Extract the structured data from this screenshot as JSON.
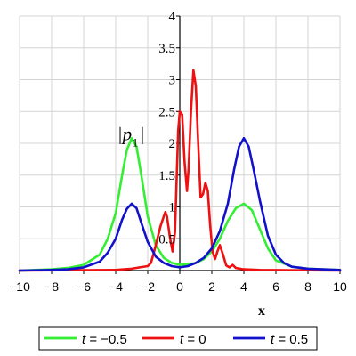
{
  "chart_data": {
    "type": "line",
    "title": "",
    "xlabel": "x",
    "ylabel": "",
    "xlim": [
      -10,
      10
    ],
    "ylim": [
      0,
      4
    ],
    "x_ticks": [
      "−10",
      "−8",
      "−6",
      "−4",
      "−2",
      "0",
      "2",
      "4",
      "6",
      "8",
      "10"
    ],
    "x_tick_values": [
      -10,
      -8,
      -6,
      -4,
      -2,
      0,
      2,
      4,
      6,
      8,
      10
    ],
    "y_ticks": [
      "0.5",
      "1",
      "1.5",
      "2",
      "2.5",
      "3",
      "3.5",
      "4"
    ],
    "y_tick_values": [
      0.5,
      1,
      1.5,
      2,
      2.5,
      3,
      3.5,
      4
    ],
    "grid": true,
    "legend_position": "bottom",
    "annotation": {
      "main": "|p",
      "sub": "1",
      "close": "|",
      "x": -3.9,
      "y": 2.05
    },
    "series": [
      {
        "name": "t = −0.5",
        "color": "#33ee33",
        "points": [
          [
            -10,
            0
          ],
          [
            -8,
            0.02
          ],
          [
            -7,
            0.04
          ],
          [
            -6,
            0.09
          ],
          [
            -5,
            0.25
          ],
          [
            -4.5,
            0.5
          ],
          [
            -4,
            0.9
          ],
          [
            -3.6,
            1.5
          ],
          [
            -3.3,
            1.9
          ],
          [
            -3,
            2.08
          ],
          [
            -2.7,
            1.95
          ],
          [
            -2.4,
            1.5
          ],
          [
            -2,
            0.85
          ],
          [
            -1.5,
            0.4
          ],
          [
            -1,
            0.2
          ],
          [
            -0.5,
            0.12
          ],
          [
            0,
            0.09
          ],
          [
            0.5,
            0.1
          ],
          [
            1,
            0.12
          ],
          [
            1.5,
            0.18
          ],
          [
            2,
            0.3
          ],
          [
            2.5,
            0.5
          ],
          [
            3,
            0.78
          ],
          [
            3.5,
            0.98
          ],
          [
            4,
            1.05
          ],
          [
            4.5,
            0.95
          ],
          [
            5,
            0.65
          ],
          [
            5.5,
            0.35
          ],
          [
            6,
            0.16
          ],
          [
            7,
            0.06
          ],
          [
            8,
            0.03
          ],
          [
            10,
            0.01
          ]
        ]
      },
      {
        "name": "t = 0",
        "color": "#ee1111",
        "points": [
          [
            -10,
            0
          ],
          [
            -4,
            0.01
          ],
          [
            -3.5,
            0.02
          ],
          [
            -3,
            0.03
          ],
          [
            -2.5,
            0.05
          ],
          [
            -2,
            0.07
          ],
          [
            -1.8,
            0.12
          ],
          [
            -1.6,
            0.3
          ],
          [
            -1.4,
            0.5
          ],
          [
            -1.2,
            0.7
          ],
          [
            -1,
            0.85
          ],
          [
            -0.9,
            0.92
          ],
          [
            -0.8,
            0.85
          ],
          [
            -0.6,
            0.5
          ],
          [
            -0.45,
            0.3
          ],
          [
            -0.3,
            0.6
          ],
          [
            -0.2,
            1.4
          ],
          [
            -0.1,
            2.2
          ],
          [
            0,
            2.5
          ],
          [
            0.15,
            2.45
          ],
          [
            0.3,
            1.7
          ],
          [
            0.45,
            1.25
          ],
          [
            0.55,
            1.6
          ],
          [
            0.7,
            2.5
          ],
          [
            0.85,
            3.15
          ],
          [
            1,
            2.9
          ],
          [
            1.15,
            2
          ],
          [
            1.3,
            1.15
          ],
          [
            1.45,
            1.2
          ],
          [
            1.6,
            1.38
          ],
          [
            1.75,
            1.25
          ],
          [
            1.9,
            0.7
          ],
          [
            2.05,
            0.3
          ],
          [
            2.2,
            0.18
          ],
          [
            2.35,
            0.3
          ],
          [
            2.5,
            0.4
          ],
          [
            2.7,
            0.25
          ],
          [
            2.9,
            0.08
          ],
          [
            3.1,
            0.05
          ],
          [
            3.3,
            0.09
          ],
          [
            3.5,
            0.04
          ],
          [
            4,
            0.02
          ],
          [
            5,
            0.01
          ],
          [
            10,
            0
          ]
        ]
      },
      {
        "name": "t = 0.5",
        "color": "#1111cc",
        "points": [
          [
            -10,
            0
          ],
          [
            -8,
            0.01
          ],
          [
            -7,
            0.02
          ],
          [
            -6,
            0.05
          ],
          [
            -5,
            0.14
          ],
          [
            -4.5,
            0.28
          ],
          [
            -4,
            0.5
          ],
          [
            -3.6,
            0.8
          ],
          [
            -3.3,
            0.97
          ],
          [
            -3,
            1.05
          ],
          [
            -2.7,
            0.98
          ],
          [
            -2.4,
            0.75
          ],
          [
            -2,
            0.45
          ],
          [
            -1.5,
            0.22
          ],
          [
            -1,
            0.12
          ],
          [
            -0.5,
            0.07
          ],
          [
            0,
            0.05
          ],
          [
            0.5,
            0.07
          ],
          [
            1,
            0.12
          ],
          [
            1.5,
            0.2
          ],
          [
            2,
            0.35
          ],
          [
            2.5,
            0.62
          ],
          [
            3,
            1.05
          ],
          [
            3.4,
            1.6
          ],
          [
            3.7,
            1.95
          ],
          [
            4,
            2.08
          ],
          [
            4.3,
            1.95
          ],
          [
            4.6,
            1.6
          ],
          [
            5,
            1.1
          ],
          [
            5.5,
            0.55
          ],
          [
            6,
            0.25
          ],
          [
            6.5,
            0.12
          ],
          [
            7,
            0.06
          ],
          [
            8,
            0.03
          ],
          [
            10,
            0.01
          ]
        ]
      }
    ]
  }
}
